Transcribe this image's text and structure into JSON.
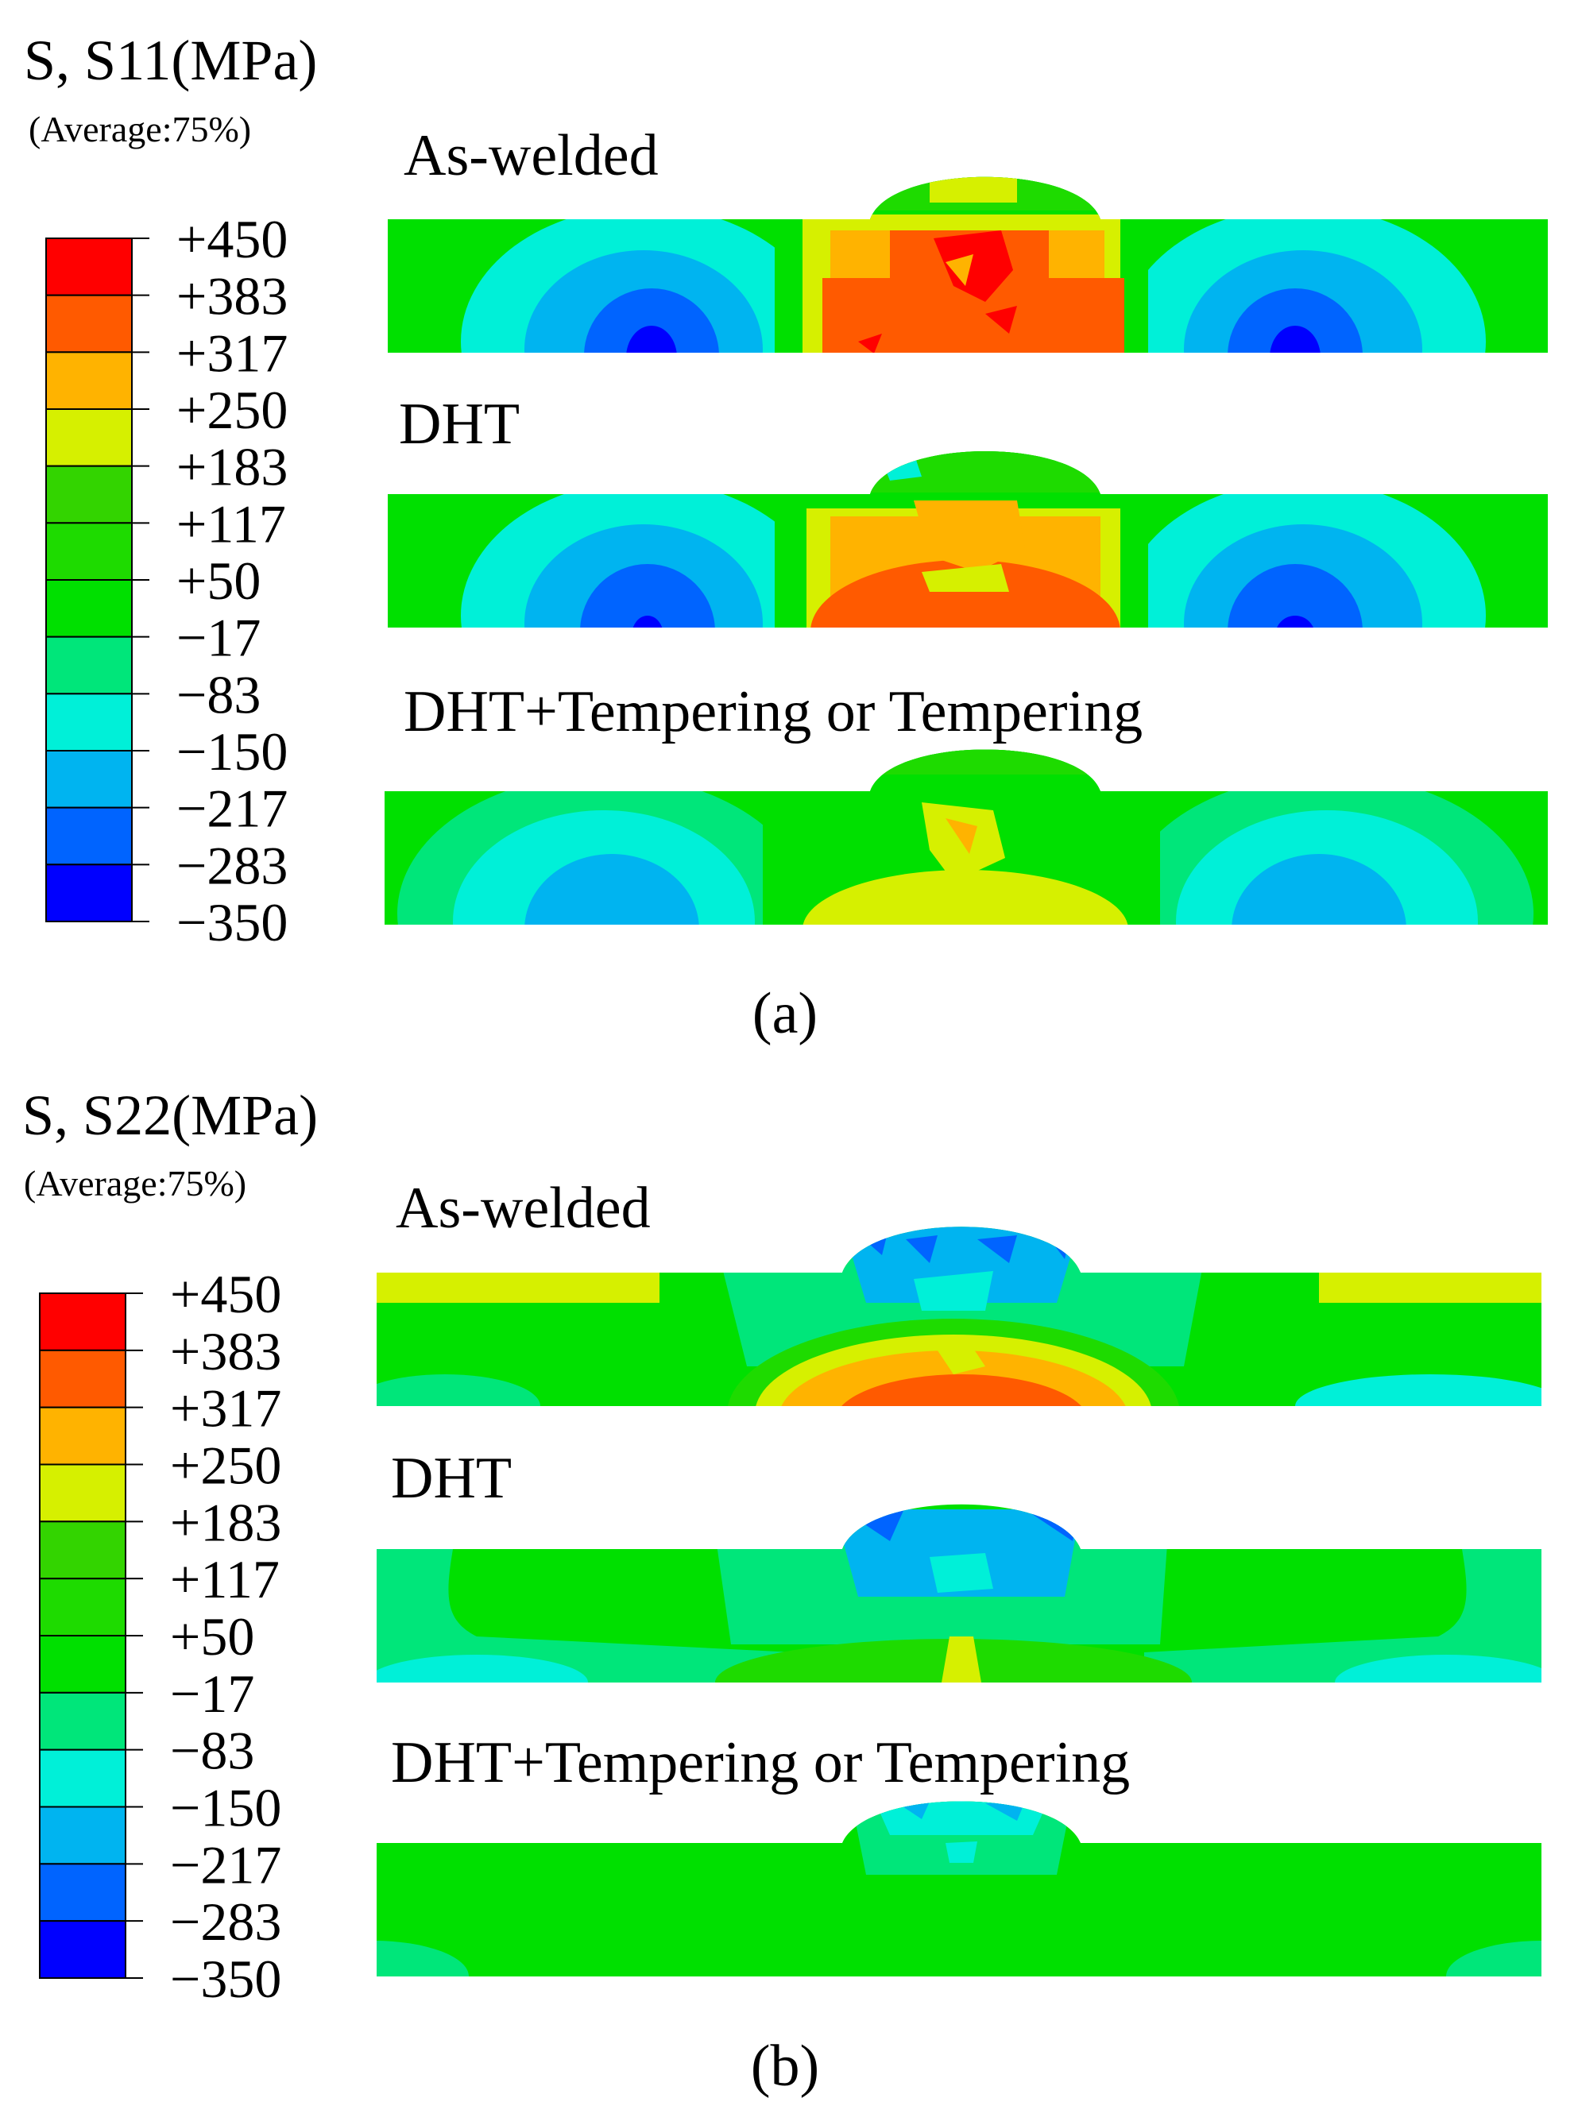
{
  "palette": [
    "#ff0000",
    "#ff5a00",
    "#ffb300",
    "#d6f000",
    "#33d400",
    "#1edb00",
    "#00e000",
    "#00e67a",
    "#00f0d8",
    "#00b4f0",
    "#0064ff",
    "#0000ff"
  ],
  "panels": [
    {
      "legend_title": "S, S11(MPa)",
      "legend_subtitle": "(Average:75%)",
      "ticks": [
        "+450",
        "+383",
        "+317",
        "+250",
        "+183",
        "+117",
        "+50",
        "−17",
        "−83",
        "−150",
        "−217",
        "−283",
        "−350"
      ],
      "caption": "(a)",
      "cases": [
        {
          "label": "As-welded"
        },
        {
          "label": "DHT"
        },
        {
          "label": "DHT+Tempering or Tempering"
        }
      ]
    },
    {
      "legend_title": "S, S22(MPa)",
      "legend_subtitle": "(Average:75%)",
      "ticks": [
        "+450",
        "+383",
        "+317",
        "+250",
        "+183",
        "+117",
        "+50",
        "−17",
        "−83",
        "−150",
        "−217",
        "−283",
        "−350"
      ],
      "caption": "(b)",
      "cases": [
        {
          "label": "As-welded"
        },
        {
          "label": "DHT"
        },
        {
          "label": "DHT+Tempering or Tempering"
        }
      ]
    }
  ]
}
